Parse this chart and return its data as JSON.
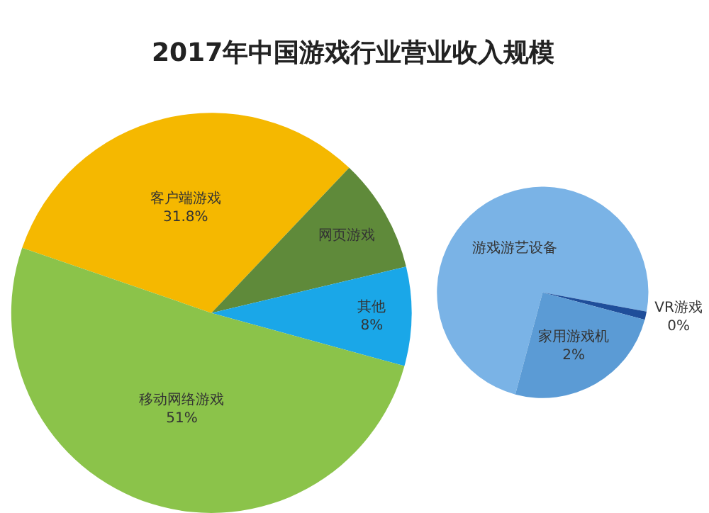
{
  "chart_data": [
    {
      "type": "pie",
      "title": "2017年中国游戏行业营业收入规模",
      "categories": [
        "客户端游戏",
        "网页游戏",
        "其他",
        "移动网络游戏"
      ],
      "values": [
        31.8,
        9.2,
        8,
        51
      ],
      "value_labels": [
        "31.8%",
        null,
        "8%",
        "51%"
      ],
      "colors": [
        "#f5b800",
        "#5f8a3a",
        "#1aa7e8",
        "#8bc34a"
      ],
      "legend": false
    },
    {
      "type": "pie",
      "categories": [
        "游戏游艺设备",
        "VR游戏",
        "家用游戏机"
      ],
      "values": [
        5.9,
        0.1,
        2
      ],
      "value_labels": [
        null,
        "0%",
        "2%"
      ],
      "colors": [
        "#7ab3e6",
        "#1f4e9a",
        "#5b9bd5"
      ],
      "legend": false
    }
  ]
}
